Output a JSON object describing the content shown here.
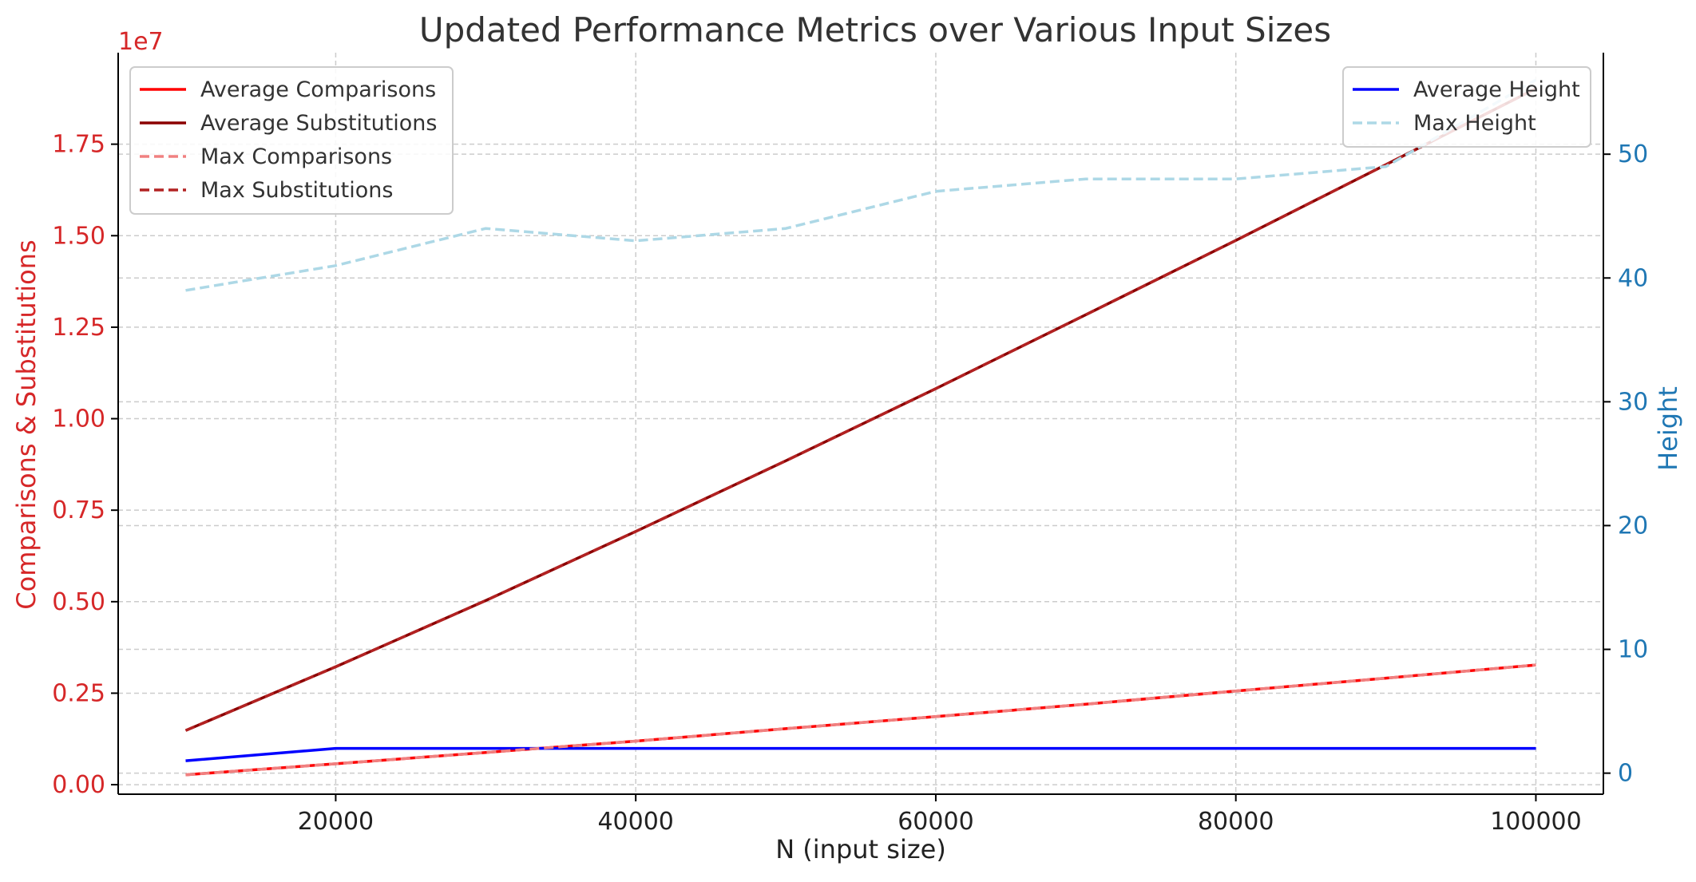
{
  "colors": {
    "avg_comparisons": "#ff0000",
    "avg_substitutions": "#8b0000",
    "max_comparisons": "#f08080",
    "max_substitutions": "#b22222",
    "avg_height": "#0000ff",
    "max_height": "#add8e6",
    "left_axis": "#d62728",
    "right_axis": "#1f77b4",
    "title": "#333333",
    "grid": "#cccccc"
  },
  "chart_data": {
    "type": "line",
    "title": "Updated Performance Metrics over Various Input Sizes",
    "xlabel": "N (input size)",
    "ylabel_left": "Comparisons & Substitutions",
    "ylabel_right": "Height",
    "left_offset_label": "1e7",
    "xlim": [
      5500,
      104500
    ],
    "ylim_left": [
      -260000,
      20000000
    ],
    "ylim_right": [
      -1.7,
      58.2
    ],
    "x_ticks": [
      20000,
      40000,
      60000,
      80000,
      100000
    ],
    "x_tick_labels": [
      "20000",
      "40000",
      "60000",
      "80000",
      "100000"
    ],
    "y_left_ticks": [
      0,
      2500000,
      5000000,
      7500000,
      10000000,
      12500000,
      15000000,
      17500000
    ],
    "y_left_tick_labels": [
      "0.00",
      "0.25",
      "0.50",
      "0.75",
      "1.00",
      "1.25",
      "1.50",
      "1.75"
    ],
    "y_right_ticks": [
      0,
      10,
      20,
      30,
      40,
      50
    ],
    "y_right_tick_labels": [
      "0",
      "10",
      "20",
      "30",
      "40",
      "50"
    ],
    "grid": true,
    "legend_left_position": "upper-left",
    "legend_right_position": "upper-right",
    "x": [
      10000,
      20000,
      30000,
      40000,
      50000,
      60000,
      70000,
      80000,
      90000,
      100000
    ],
    "series": [
      {
        "name": "Average Comparisons",
        "axis": "left",
        "style": "solid",
        "colorKey": "avg_comparisons",
        "values": [
          270000,
          570000,
          880000,
          1190000,
          1530000,
          1860000,
          2200000,
          2560000,
          2910000,
          3270000
        ]
      },
      {
        "name": "Average Substitutions",
        "axis": "left",
        "style": "solid",
        "colorKey": "avg_substitutions",
        "values": [
          1480000,
          3220000,
          5030000,
          6920000,
          8850000,
          10820000,
          12840000,
          14870000,
          16940000,
          19020000
        ]
      },
      {
        "name": "Max Comparisons",
        "axis": "left",
        "style": "dashed",
        "colorKey": "max_comparisons",
        "values": [
          270000,
          570000,
          880000,
          1190000,
          1530000,
          1860000,
          2200000,
          2560000,
          2910000,
          3270000
        ]
      },
      {
        "name": "Max Substitutions",
        "axis": "left",
        "style": "dashed",
        "colorKey": "max_substitutions",
        "values": [
          1480000,
          3220000,
          5030000,
          6920000,
          8850000,
          10820000,
          12840000,
          14870000,
          16940000,
          19020000
        ]
      },
      {
        "name": "Average Height",
        "axis": "right",
        "style": "solid",
        "colorKey": "avg_height",
        "values": [
          1,
          2,
          2,
          2,
          2,
          2,
          2,
          2,
          2,
          2
        ]
      },
      {
        "name": "Max Height",
        "axis": "right",
        "style": "dashed",
        "colorKey": "max_height",
        "values": [
          39,
          41,
          44,
          43,
          44,
          47,
          48,
          48,
          49,
          56
        ]
      }
    ]
  }
}
